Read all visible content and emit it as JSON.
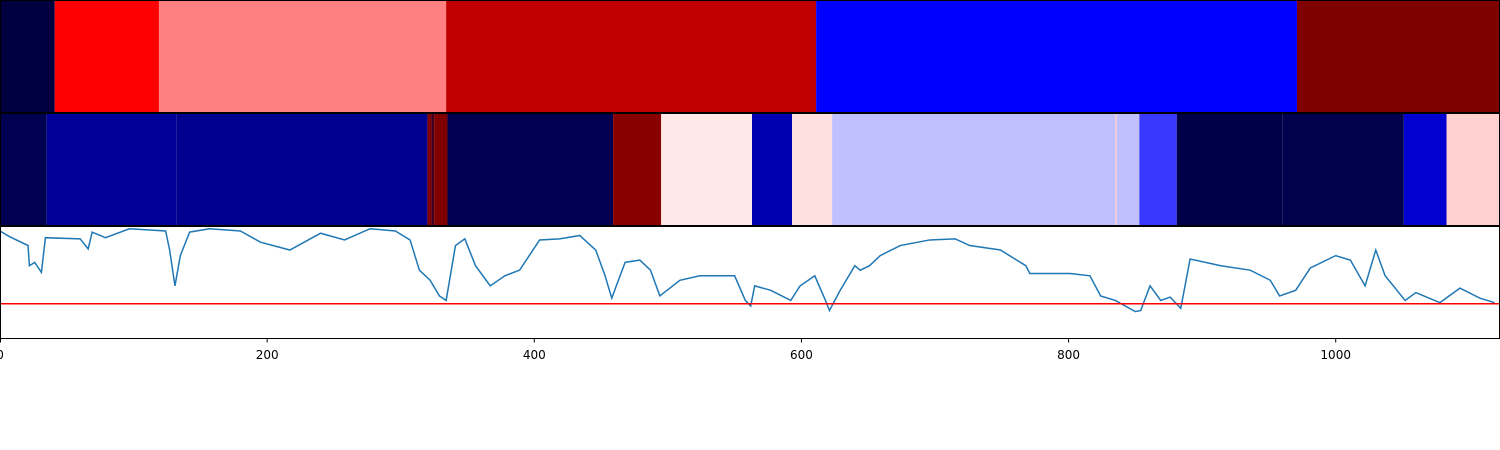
{
  "chart_data": [
    {
      "type": "band",
      "xlim": [
        0,
        1123
      ],
      "segments": [
        {
          "start": 0,
          "end": 41,
          "color": "#000040"
        },
        {
          "start": 41,
          "end": 119,
          "color": "#ff0000"
        },
        {
          "start": 119,
          "end": 334,
          "color": "#ff8080"
        },
        {
          "start": 334,
          "end": 611,
          "color": "#c00000"
        },
        {
          "start": 611,
          "end": 971,
          "color": "#0000ff"
        },
        {
          "start": 971,
          "end": 1123,
          "color": "#800000"
        }
      ]
    },
    {
      "type": "band",
      "xlim": [
        0,
        1123
      ],
      "segments": [
        {
          "start": 0,
          "end": 35,
          "color": "#000050"
        },
        {
          "start": 35,
          "end": 132,
          "color": "#000099"
        },
        {
          "start": 132,
          "end": 320,
          "color": "#00008f"
        },
        {
          "start": 320,
          "end": 323,
          "color": "#800000"
        },
        {
          "start": 323,
          "end": 325,
          "color": "#400020"
        },
        {
          "start": 325,
          "end": 335,
          "color": "#800000"
        },
        {
          "start": 335,
          "end": 459,
          "color": "#000050"
        },
        {
          "start": 459,
          "end": 495,
          "color": "#880000"
        },
        {
          "start": 495,
          "end": 563,
          "color": "#ffe8e8"
        },
        {
          "start": 563,
          "end": 593,
          "color": "#0000b0"
        },
        {
          "start": 593,
          "end": 623,
          "color": "#ffe0e0"
        },
        {
          "start": 623,
          "end": 835,
          "color": "#c0c0ff"
        },
        {
          "start": 835,
          "end": 836,
          "color": "#ffc8c8"
        },
        {
          "start": 836,
          "end": 853,
          "color": "#c0c0ff"
        },
        {
          "start": 853,
          "end": 881,
          "color": "#3838ff"
        },
        {
          "start": 881,
          "end": 960,
          "color": "#000048"
        },
        {
          "start": 960,
          "end": 1051,
          "color": "#00004c"
        },
        {
          "start": 1051,
          "end": 1083,
          "color": "#0000d0"
        },
        {
          "start": 1083,
          "end": 1123,
          "color": "#ffd0d0"
        }
      ]
    },
    {
      "type": "line",
      "xlim": [
        0,
        1123
      ],
      "ylim": [
        0,
        1
      ],
      "xticks": [
        0,
        200,
        400,
        600,
        800,
        1000
      ],
      "color": "#1f77b4",
      "threshold": {
        "value": 0.31,
        "color": "#ff0000"
      },
      "x": [
        0,
        7,
        21,
        22,
        26,
        31,
        34,
        60,
        66,
        69,
        79,
        97,
        124,
        127,
        131,
        135,
        142,
        157,
        180,
        195,
        217,
        240,
        258,
        277,
        296,
        307,
        314,
        322,
        329,
        334,
        341,
        348,
        356,
        367,
        378,
        389,
        404,
        419,
        434,
        446,
        453,
        458,
        468,
        479,
        487,
        494,
        509,
        524,
        550,
        558,
        562,
        565,
        577,
        592,
        599,
        610,
        618,
        621,
        629,
        640,
        644,
        651,
        659,
        674,
        696,
        715,
        726,
        749,
        768,
        771,
        801,
        816,
        824,
        835,
        850,
        854,
        861,
        869,
        876,
        884,
        891,
        914,
        936,
        951,
        958,
        970,
        981,
        1000,
        1011,
        1022,
        1030,
        1037,
        1052,
        1060,
        1078,
        1093,
        1108,
        1119
      ],
      "values": [
        0.96,
        0.91,
        0.83,
        0.65,
        0.68,
        0.59,
        0.9,
        0.89,
        0.8,
        0.95,
        0.9,
        0.98,
        0.96,
        0.79,
        0.47,
        0.74,
        0.95,
        0.98,
        0.96,
        0.86,
        0.79,
        0.94,
        0.88,
        0.98,
        0.96,
        0.88,
        0.61,
        0.52,
        0.38,
        0.34,
        0.83,
        0.89,
        0.65,
        0.47,
        0.56,
        0.61,
        0.88,
        0.89,
        0.92,
        0.79,
        0.56,
        0.36,
        0.68,
        0.7,
        0.61,
        0.38,
        0.52,
        0.56,
        0.56,
        0.34,
        0.29,
        0.47,
        0.43,
        0.34,
        0.47,
        0.56,
        0.34,
        0.25,
        0.43,
        0.65,
        0.61,
        0.65,
        0.74,
        0.83,
        0.88,
        0.89,
        0.83,
        0.79,
        0.65,
        0.58,
        0.58,
        0.56,
        0.38,
        0.34,
        0.24,
        0.25,
        0.47,
        0.34,
        0.37,
        0.27,
        0.71,
        0.65,
        0.61,
        0.52,
        0.38,
        0.43,
        0.63,
        0.74,
        0.7,
        0.47,
        0.79,
        0.56,
        0.34,
        0.41,
        0.32,
        0.45,
        0.36,
        0.32
      ]
    }
  ]
}
